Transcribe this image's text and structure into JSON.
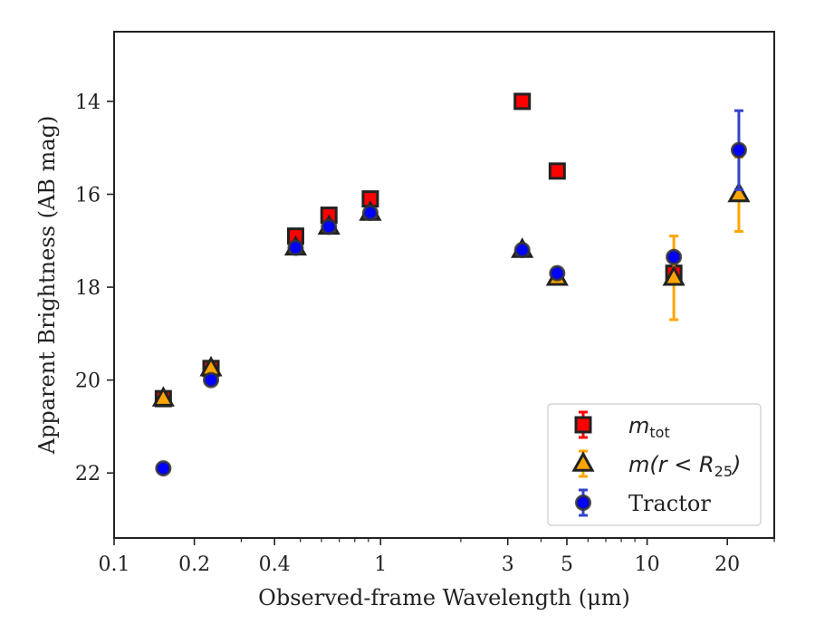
{
  "chart_data": {
    "type": "scatter",
    "xlabel": "Observed-frame Wavelength (μm)",
    "ylabel": "Apparent Brightness (AB mag)",
    "xscale": "log",
    "xlim": [
      0.1,
      30
    ],
    "ylim": [
      23.4,
      12.5
    ],
    "y_inverted": true,
    "xticks": [
      {
        "value": 0.1,
        "label": "0.1"
      },
      {
        "value": 0.2,
        "label": "0.2"
      },
      {
        "value": 0.4,
        "label": "0.4"
      },
      {
        "value": 1,
        "label": "1"
      },
      {
        "value": 3,
        "label": "3"
      },
      {
        "value": 5,
        "label": "5"
      },
      {
        "value": 10,
        "label": "10"
      },
      {
        "value": 20,
        "label": "20"
      }
    ],
    "yticks": [
      {
        "value": 14,
        "label": "14"
      },
      {
        "value": 16,
        "label": "16"
      },
      {
        "value": 18,
        "label": "18"
      },
      {
        "value": 20,
        "label": "20"
      },
      {
        "value": 22,
        "label": "22"
      }
    ],
    "legend_position": "lower-right",
    "series": [
      {
        "name": "m_tot",
        "legend_main": "m",
        "legend_sub": "tot",
        "marker": "square",
        "fill": "#ff0000",
        "edge": "#222222",
        "errcolor": "#ff0000",
        "points": [
          {
            "x": 0.153,
            "y": 20.4,
            "err": 0
          },
          {
            "x": 0.231,
            "y": 19.75,
            "err": 0
          },
          {
            "x": 0.48,
            "y": 16.9,
            "err": 0
          },
          {
            "x": 0.64,
            "y": 16.45,
            "err": 0
          },
          {
            "x": 0.915,
            "y": 16.1,
            "err": 0
          },
          {
            "x": 3.4,
            "y": 14.0,
            "err": 0
          },
          {
            "x": 4.6,
            "y": 15.5,
            "err": 0
          },
          {
            "x": 12.6,
            "y": 17.7,
            "err": 0
          }
        ]
      },
      {
        "name": "m(r < R_25)",
        "legend_main": "m(r < R",
        "legend_sub": "25",
        "legend_end": ")",
        "marker": "triangle",
        "fill": "#ffa500",
        "edge": "#222222",
        "errcolor": "#ffa500",
        "points": [
          {
            "x": 0.153,
            "y": 20.4,
            "err": 0
          },
          {
            "x": 0.231,
            "y": 19.75,
            "err": 0
          },
          {
            "x": 0.48,
            "y": 17.15,
            "err": 0
          },
          {
            "x": 0.64,
            "y": 16.7,
            "err": 0
          },
          {
            "x": 0.915,
            "y": 16.4,
            "err": 0
          },
          {
            "x": 3.4,
            "y": 17.2,
            "err": 0
          },
          {
            "x": 4.6,
            "y": 17.8,
            "err": 0
          },
          {
            "x": 12.6,
            "y": 17.8,
            "err": 0.9
          },
          {
            "x": 22.1,
            "y": 16.0,
            "err": 0.8
          }
        ]
      },
      {
        "name": "Tractor",
        "legend_main": "Tractor",
        "marker": "circle",
        "fill": "#0000ff",
        "edge": "#333333",
        "errcolor": "#3344cc",
        "points": [
          {
            "x": 0.153,
            "y": 21.9,
            "err": 0
          },
          {
            "x": 0.231,
            "y": 20.0,
            "err": 0
          },
          {
            "x": 0.48,
            "y": 17.15,
            "err": 0
          },
          {
            "x": 0.64,
            "y": 16.7,
            "err": 0
          },
          {
            "x": 0.915,
            "y": 16.4,
            "err": 0
          },
          {
            "x": 3.4,
            "y": 17.2,
            "err": 0
          },
          {
            "x": 4.6,
            "y": 17.7,
            "err": 0
          },
          {
            "x": 12.6,
            "y": 17.35,
            "err": 0
          },
          {
            "x": 22.1,
            "y": 15.05,
            "err": 0.85
          }
        ]
      }
    ]
  }
}
